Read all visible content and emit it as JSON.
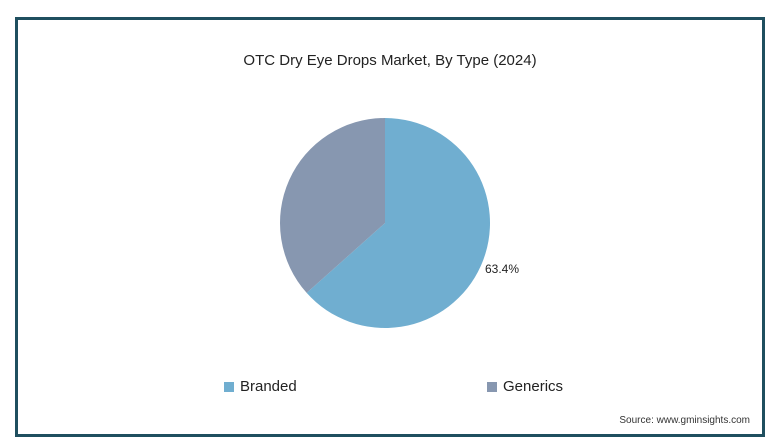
{
  "chart_data": {
    "type": "pie",
    "title": "OTC Dry Eye Drops Market, By Type (2024)",
    "series": [
      {
        "name": "Branded",
        "value": 63.4,
        "label": "63.4%",
        "color": "#70aed0"
      },
      {
        "name": "Generics",
        "value": 36.6,
        "label": "",
        "color": "#8797b0"
      }
    ],
    "legend_position": "bottom"
  },
  "legend": {
    "items": [
      {
        "label": "Branded",
        "color": "#70aed0"
      },
      {
        "label": "Generics",
        "color": "#8797b0"
      }
    ]
  },
  "source": "Source: www.gminsights.com",
  "colors": {
    "frame_border": "#1f4f5f"
  }
}
